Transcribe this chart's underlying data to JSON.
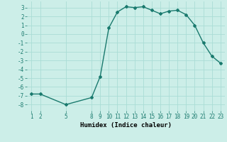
{
  "x": [
    1,
    2,
    5,
    8,
    9,
    10,
    11,
    12,
    13,
    14,
    15,
    16,
    17,
    18,
    19,
    20,
    21,
    22,
    23
  ],
  "y": [
    -6.8,
    -6.8,
    -8.0,
    -7.2,
    -4.8,
    0.7,
    2.5,
    3.1,
    3.0,
    3.1,
    2.7,
    2.3,
    2.6,
    2.7,
    2.2,
    1.0,
    -1.0,
    -2.5,
    -3.3
  ],
  "title": "",
  "xlabel": "Humidex (Indice chaleur)",
  "ylabel": "",
  "xlim": [
    0.5,
    23.5
  ],
  "ylim": [
    -8.7,
    3.7
  ],
  "xticks": [
    1,
    2,
    5,
    8,
    9,
    10,
    11,
    12,
    13,
    14,
    15,
    16,
    17,
    18,
    19,
    20,
    21,
    22,
    23
  ],
  "yticks": [
    -8,
    -7,
    -6,
    -5,
    -4,
    -3,
    -2,
    -1,
    0,
    1,
    2,
    3
  ],
  "line_color": "#1a7a6e",
  "bg_color": "#cceee8",
  "grid_color": "#aaddd5",
  "marker": "D",
  "marker_size": 2.0,
  "line_width": 1.0,
  "label_fontsize": 6.5,
  "tick_fontsize": 5.5
}
